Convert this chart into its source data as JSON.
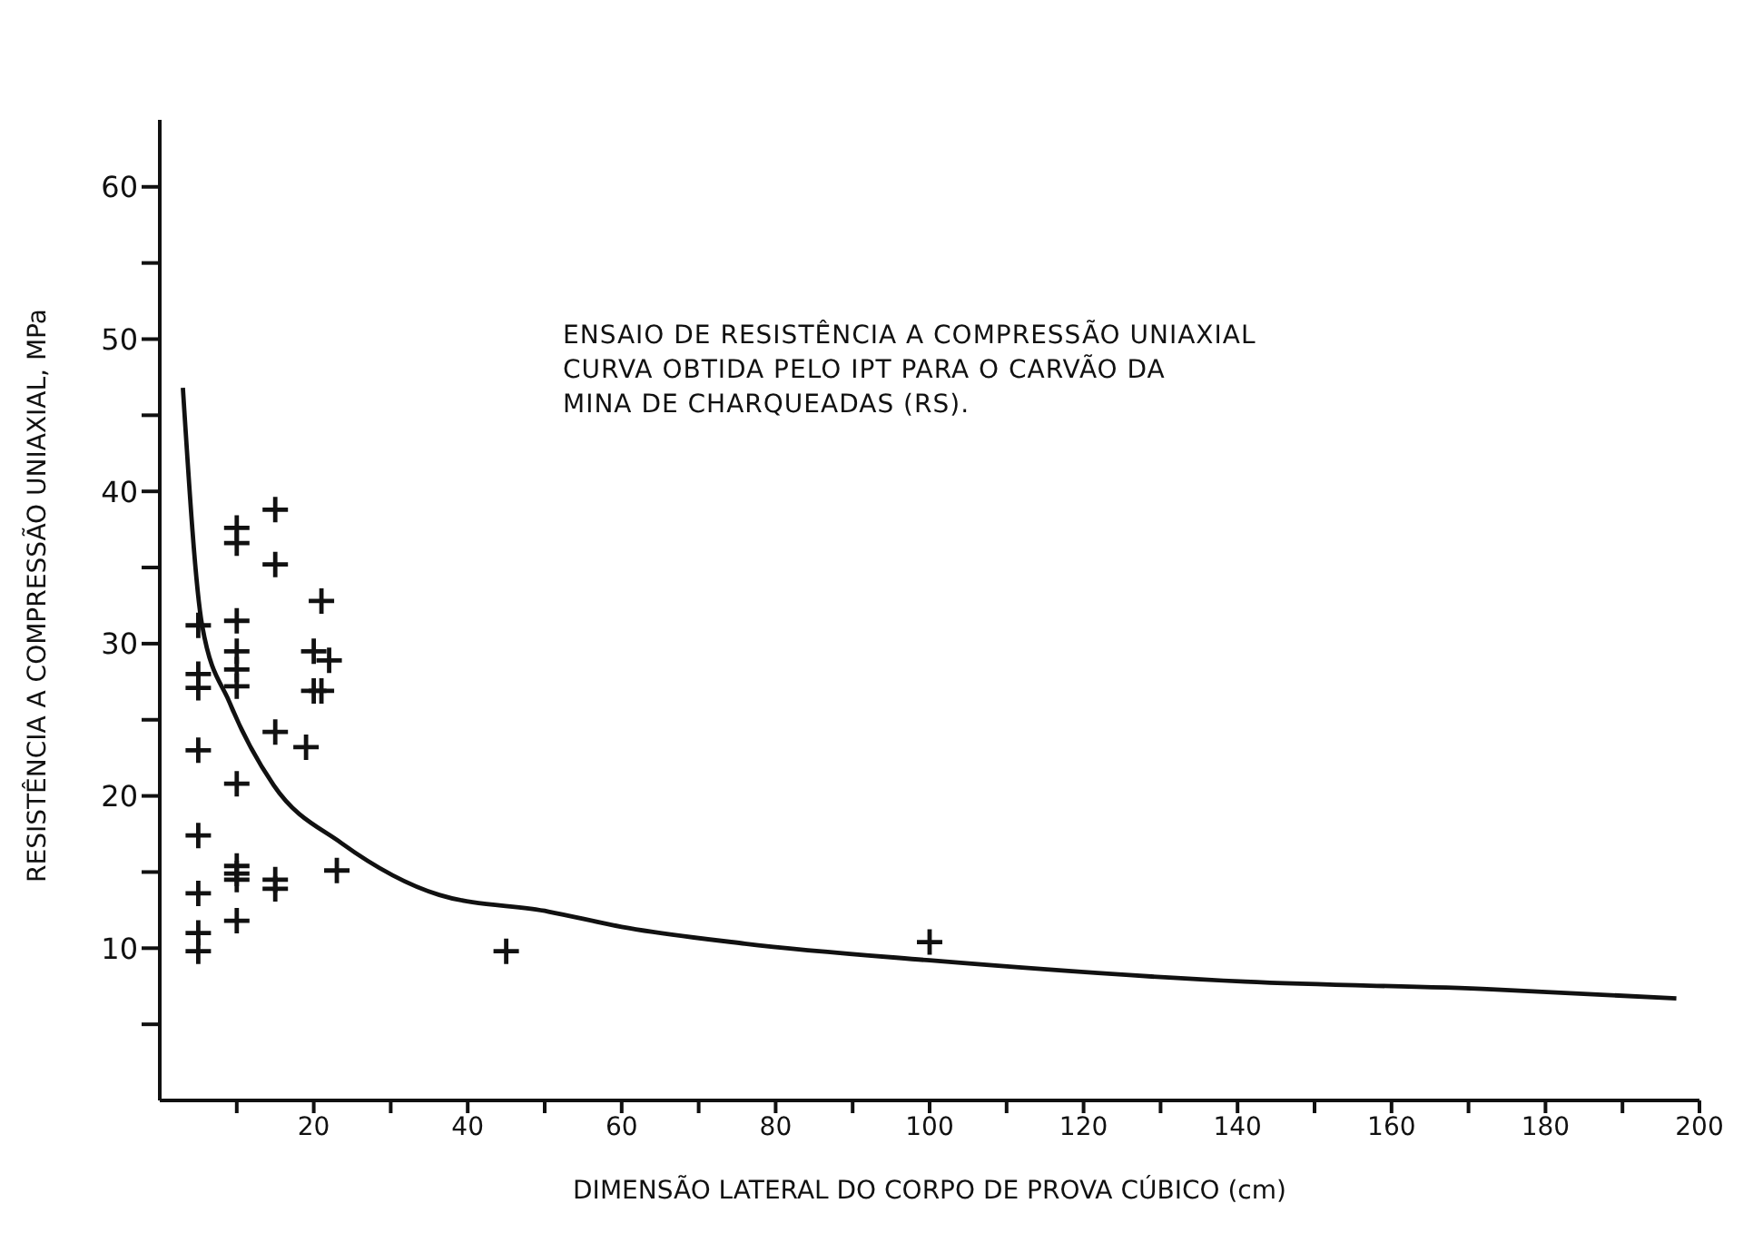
{
  "chart_data": {
    "type": "scatter",
    "xlabel": "DIMENSÃO LATERAL DO CORPO DE PROVA CÚBICO (cm)",
    "ylabel": "RESISTÊNCIA A COMPRESSÃO UNIAXIAL, MPa",
    "annotations": [
      "ENSAIO DE RESISTÊNCIA A COMPRESSÃO UNIAXIAL",
      "CURVA OBTIDA PELO IPT PARA O CARVÃO DA",
      "MINA DE CHARQUEADAS (RS)."
    ],
    "xlim": [
      0,
      200
    ],
    "ylim": [
      0,
      64.4
    ],
    "xticks": [
      {
        "value": 10,
        "label": null
      },
      20,
      {
        "value": 30,
        "label": null
      },
      40,
      {
        "value": 50,
        "label": null
      },
      60,
      {
        "value": 70,
        "label": null
      },
      80,
      {
        "value": 90,
        "label": null
      },
      100,
      {
        "value": 110,
        "label": null
      },
      120,
      {
        "value": 130,
        "label": null
      },
      140,
      {
        "value": 150,
        "label": null
      },
      160,
      {
        "value": 170,
        "label": null
      },
      180,
      {
        "value": 190,
        "label": null
      },
      200
    ],
    "yticks": [
      {
        "value": 5,
        "label": null
      },
      10,
      {
        "value": 15,
        "label": null
      },
      20,
      {
        "value": 25,
        "label": null
      },
      30,
      {
        "value": 35,
        "label": null
      },
      40,
      {
        "value": 45,
        "label": null
      },
      50,
      {
        "value": 55,
        "label": null
      },
      60
    ],
    "grid": false,
    "legend": false,
    "series": [
      {
        "marker": "cross",
        "color": "#111111",
        "x": [
          5,
          5,
          5,
          5,
          5,
          5,
          5,
          5,
          10,
          10,
          10,
          10,
          10,
          10,
          10,
          10,
          10,
          10,
          10,
          15,
          15,
          15,
          15,
          15,
          19,
          20,
          21,
          21,
          20,
          22,
          23,
          45,
          100
        ],
        "values": [
          31.2,
          28.0,
          27.1,
          23.0,
          17.4,
          13.6,
          11.0,
          9.8,
          37.6,
          36.6,
          31.5,
          29.5,
          28.3,
          27.2,
          20.8,
          15.4,
          14.9,
          14.5,
          11.8,
          38.8,
          35.2,
          24.2,
          14.5,
          13.9,
          23.2,
          26.9,
          26.9,
          32.8,
          29.5,
          28.9,
          15.1,
          9.8,
          10.4
        ]
      },
      {
        "type": "line",
        "marker": "none",
        "line_style": "solid",
        "color": "#111111",
        "x": [
          3,
          5.5,
          9.1,
          14.8,
          23.6,
          36.3,
          50.5,
          60,
          76,
          100,
          141,
          173,
          197
        ],
        "values": [
          46.8,
          31.2,
          26.1,
          20.7,
          16.9,
          13.5,
          12.4,
          11.4,
          10.3,
          9.2,
          7.8,
          7.3,
          6.7
        ]
      }
    ]
  }
}
